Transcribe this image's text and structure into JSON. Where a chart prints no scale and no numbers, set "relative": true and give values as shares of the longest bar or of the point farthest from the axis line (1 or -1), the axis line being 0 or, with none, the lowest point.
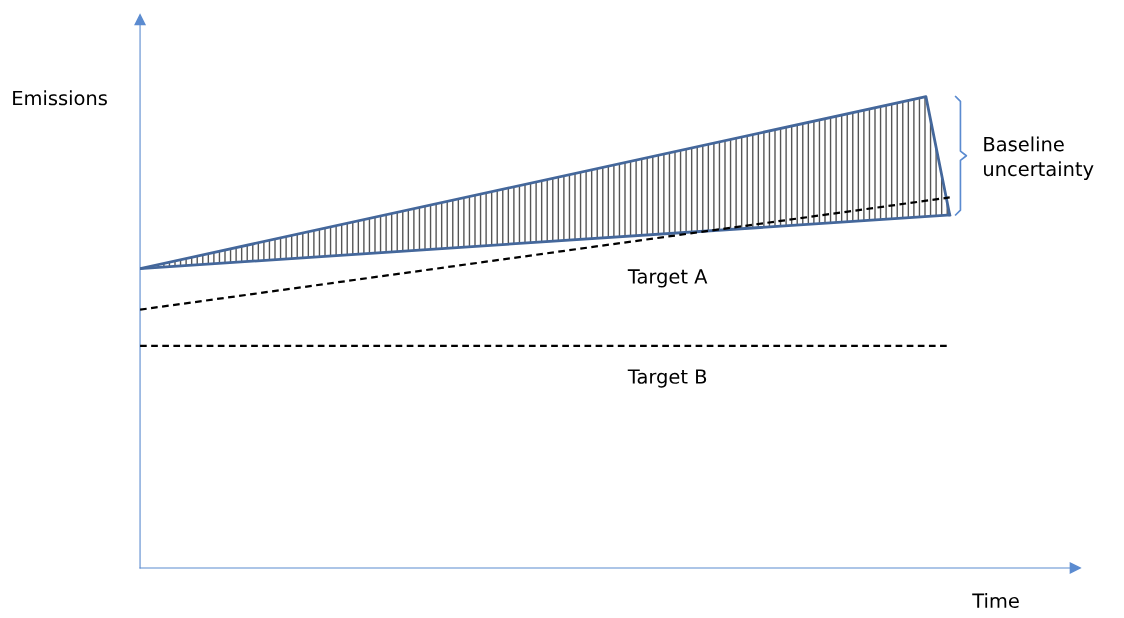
{
  "chart_data": {
    "type": "line",
    "relative": true,
    "xlabel": "Time",
    "ylabel": "Emissions",
    "categories": [
      null,
      null,
      null,
      null,
      null,
      null,
      null,
      null,
      null,
      null,
      null,
      null,
      null,
      null,
      null,
      null,
      null,
      null,
      null,
      null,
      null,
      null,
      null,
      null,
      null,
      null,
      null,
      null,
      null,
      null,
      null,
      null,
      null,
      null,
      null
    ],
    "series": [
      {
        "color": "#44679b",
        "values": [
          0.635,
          null,
          null,
          null,
          null,
          null,
          null,
          null,
          null,
          null,
          null,
          null,
          null,
          null,
          null,
          null,
          null,
          null,
          null,
          null,
          null,
          null,
          null,
          null,
          null,
          null,
          null,
          null,
          null,
          null,
          null,
          null,
          null,
          1,
          0.749
        ]
      },
      {
        "color": "#44679b",
        "values": [
          0.635,
          null,
          null,
          null,
          null,
          null,
          null,
          null,
          null,
          null,
          null,
          null,
          null,
          null,
          null,
          null,
          null,
          null,
          null,
          null,
          null,
          null,
          null,
          null,
          null,
          null,
          null,
          null,
          null,
          null,
          null,
          null,
          null,
          null,
          0.749
        ]
      },
      {
        "color": "#000000",
        "line_style": "dashed",
        "values": [
          0.548,
          null,
          null,
          null,
          null,
          null,
          null,
          null,
          null,
          null,
          null,
          null,
          null,
          null,
          null,
          null,
          null,
          null,
          null,
          null,
          null,
          null,
          null,
          null,
          null,
          null,
          null,
          null,
          null,
          null,
          null,
          null,
          null,
          null,
          0.786
        ]
      },
      {
        "color": "#000000",
        "line_style": "dashed",
        "values": [
          0.471,
          null,
          null,
          null,
          null,
          null,
          null,
          null,
          null,
          null,
          null,
          null,
          null,
          null,
          null,
          null,
          null,
          null,
          null,
          null,
          null,
          null,
          null,
          null,
          null,
          null,
          null,
          null,
          null,
          null,
          null,
          null,
          null,
          null,
          0.471
        ]
      }
    ],
    "annotations": [
      "Target A",
      "Target B",
      "Baseline\nuncertainty"
    ]
  }
}
